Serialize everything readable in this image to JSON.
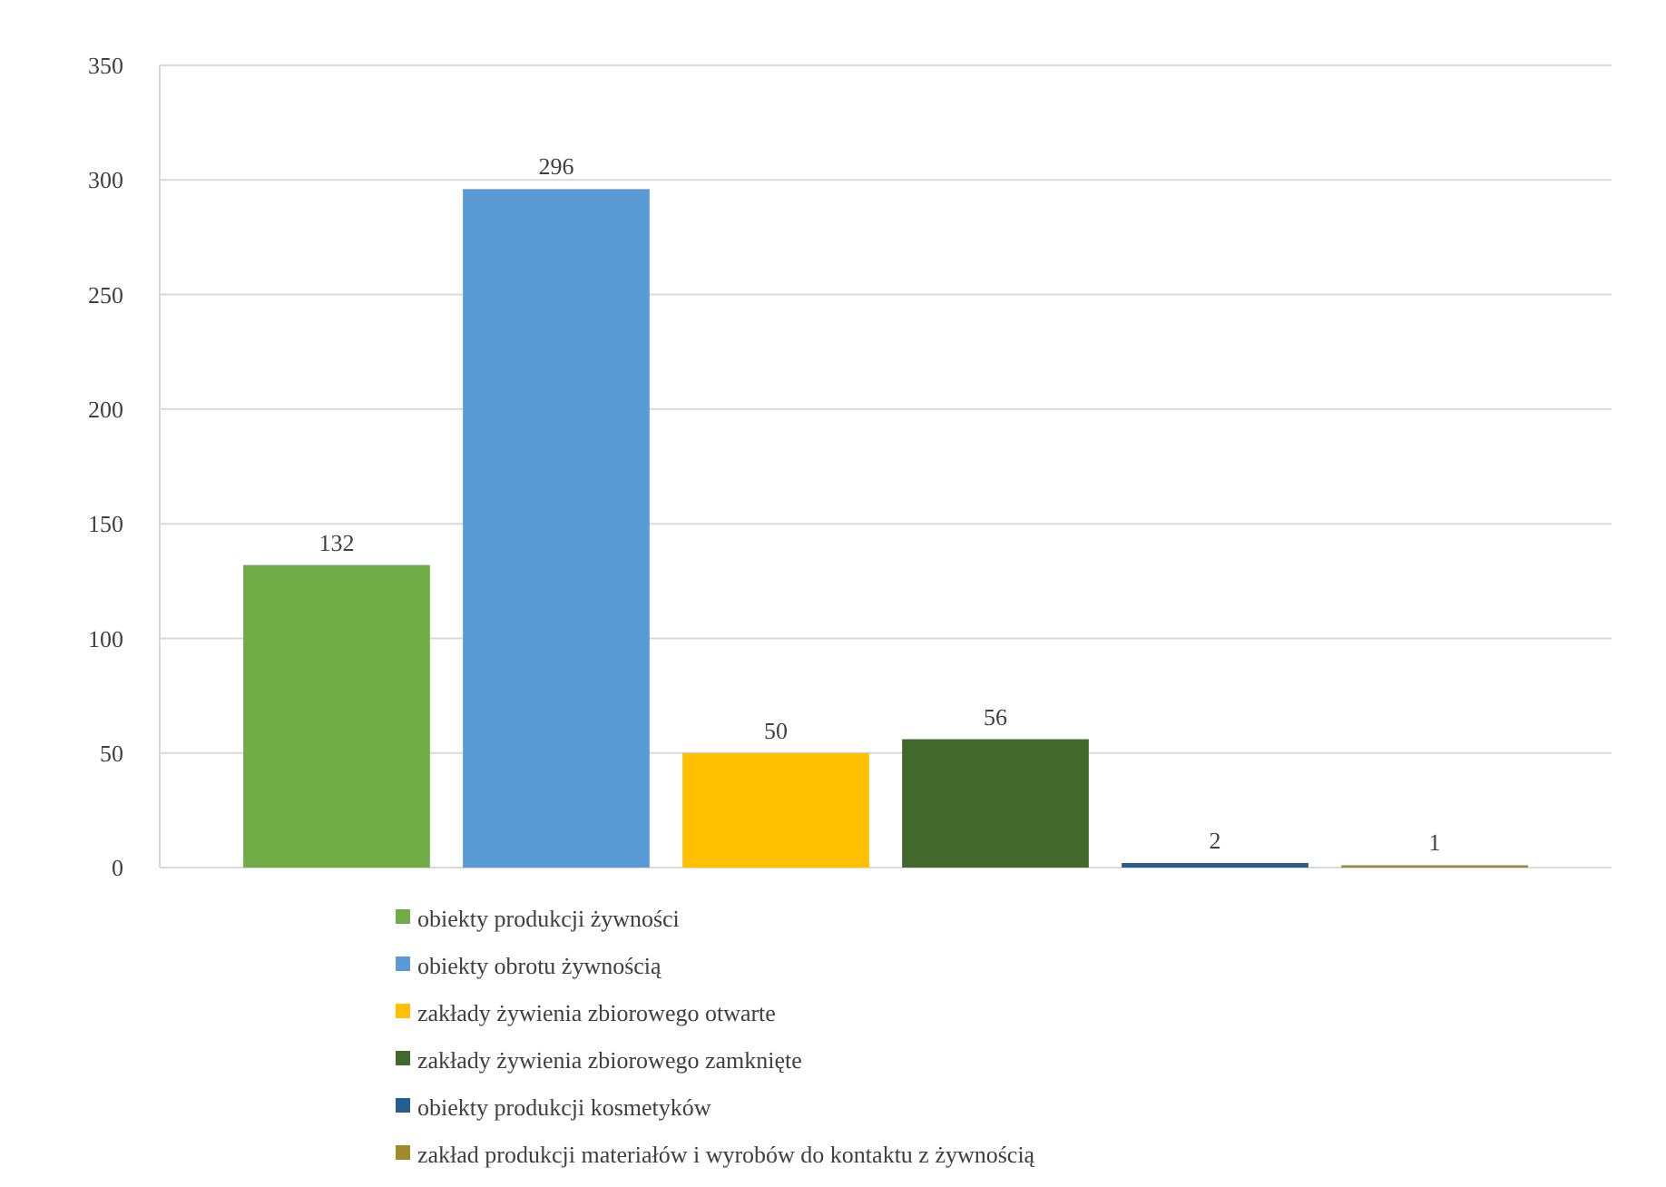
{
  "chart_data": {
    "type": "bar",
    "categories": [
      null
    ],
    "series": [
      {
        "name": "obiekty produkcji żywności",
        "color": "#70ad47",
        "values": [
          132
        ]
      },
      {
        "name": "obiekty obrotu żywnością",
        "color": "#5b9bd5",
        "values": [
          296
        ]
      },
      {
        "name": "zakłady żywienia zbiorowego otwarte",
        "color": "#ffc000",
        "values": [
          50
        ]
      },
      {
        "name": "zakłady żywienia zbiorowego zamknięte",
        "color": "#43682b",
        "values": [
          56
        ]
      },
      {
        "name": "obiekty produkcji kosmetyków",
        "color": "#255e91",
        "values": [
          2
        ]
      },
      {
        "name": "zakład produkcji materiałów i wyrobów do kontaktu z żywnością",
        "color": "#9e8a2a",
        "values": [
          1
        ]
      }
    ],
    "ylim": [
      0,
      350
    ],
    "yticks": [
      0,
      50,
      100,
      150,
      200,
      250,
      300,
      350
    ],
    "grid": "y",
    "data_labels": true,
    "legend": "bottom"
  }
}
